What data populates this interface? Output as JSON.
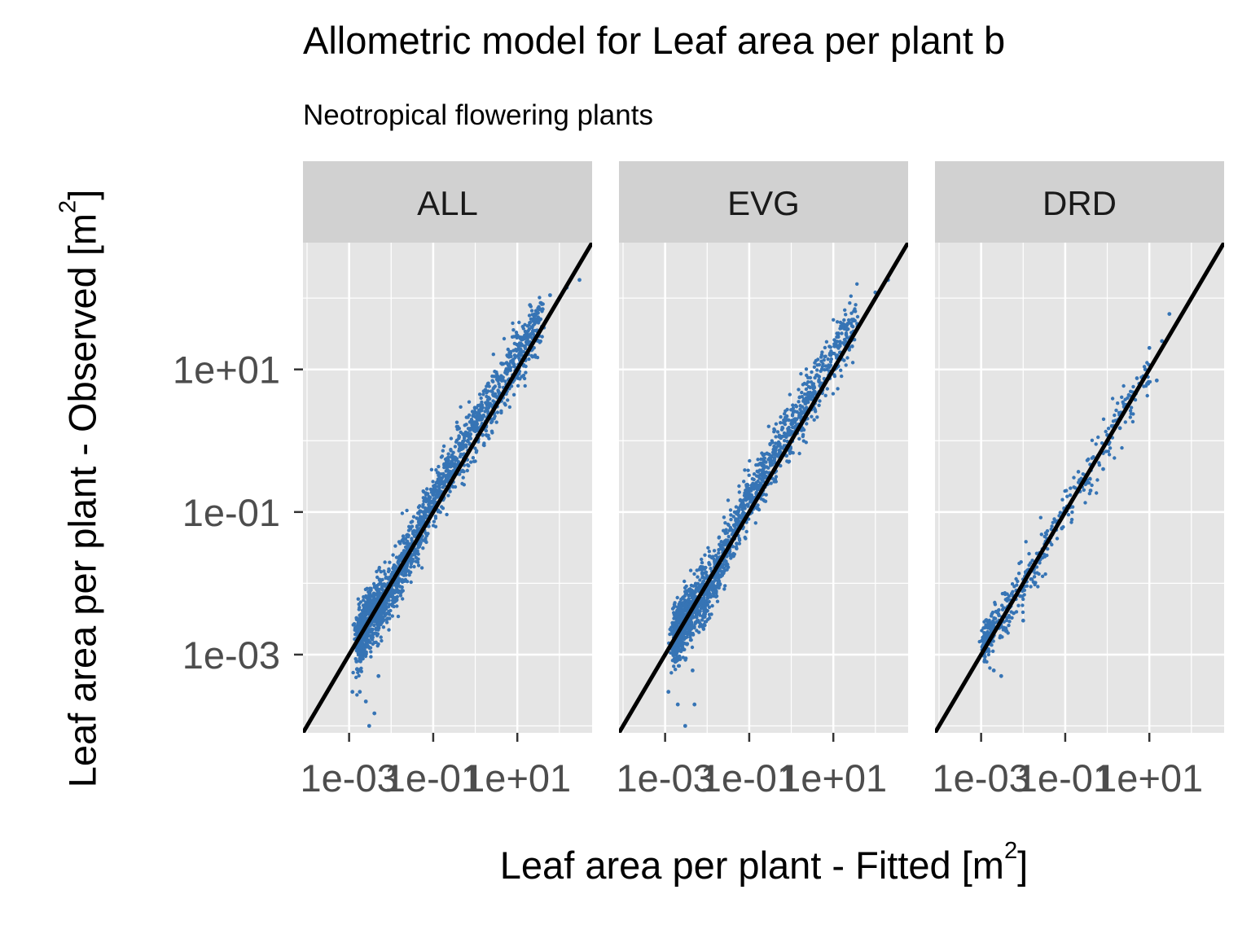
{
  "chart_data": {
    "type": "scatter",
    "title": "Allometric model for Leaf area per plant b",
    "subtitle": "Neotropical flowering plants",
    "xlabel": "Leaf area per plant - Fitted [m",
    "ylabel": "Leaf area per plant - Observed [m",
    "unit_exponent": "2",
    "unit_close": "]",
    "scale": "log10",
    "xlim": [
      8e-05,
      600
    ],
    "ylim": [
      8e-05,
      600
    ],
    "x_ticks": [
      0.001,
      0.1,
      10
    ],
    "y_ticks": [
      0.001,
      0.1,
      10
    ],
    "x_tick_labels": [
      "1e-03",
      "1e-01",
      "1e+01"
    ],
    "y_tick_labels": [
      "1e-03",
      "1e-01",
      "1e+01"
    ],
    "grid": true,
    "reference_line": "1:1",
    "point_color": "#3674B5",
    "line_color": "#000000",
    "panel_background": "#E5E5E5",
    "strip_background": "#D1D1D1",
    "panels": [
      {
        "label": "ALL",
        "approx_n_points": 2000,
        "center": [
          [
            0.003,
            0.003
          ],
          [
            0.01,
            0.008
          ],
          [
            0.03,
            0.03
          ],
          [
            0.1,
            0.15
          ],
          [
            0.3,
            0.5
          ],
          [
            1,
            1.5
          ],
          [
            3,
            4
          ],
          [
            10,
            15
          ],
          [
            30,
            45
          ]
        ],
        "points": [
          {
            "x": 0.0018,
            "y": 0.0003
          },
          {
            "x": 0.0025,
            "y": 0.00022
          },
          {
            "x": 0.003,
            "y": 0.0001
          },
          {
            "x": 0.0012,
            "y": 0.0003
          },
          {
            "x": 0.0015,
            "y": 0.0008
          },
          {
            "x": 0.004,
            "y": 0.00015
          },
          {
            "x": 0.005,
            "y": 0.0005
          },
          {
            "x": 0.2,
            "y": 0.2
          },
          {
            "x": 1.5,
            "y": 1.2
          },
          {
            "x": 3,
            "y": 3
          },
          {
            "x": 10,
            "y": 30
          },
          {
            "x": 20,
            "y": 80
          },
          {
            "x": 40,
            "y": 70
          },
          {
            "x": 60,
            "y": 110
          },
          {
            "x": 150,
            "y": 140
          },
          {
            "x": 300,
            "y": 180
          }
        ]
      },
      {
        "label": "EVG",
        "approx_n_points": 1700,
        "center": [
          [
            0.003,
            0.003
          ],
          [
            0.01,
            0.008
          ],
          [
            0.03,
            0.03
          ],
          [
            0.1,
            0.15
          ],
          [
            0.3,
            0.5
          ],
          [
            1,
            1.5
          ],
          [
            3,
            4
          ],
          [
            10,
            15
          ],
          [
            30,
            45
          ]
        ],
        "points": [
          {
            "x": 0.0012,
            "y": 0.0003
          },
          {
            "x": 0.002,
            "y": 0.0002
          },
          {
            "x": 0.003,
            "y": 0.0001
          },
          {
            "x": 0.005,
            "y": 0.0002
          },
          {
            "x": 0.0045,
            "y": 0.0006
          },
          {
            "x": 1,
            "y": 1
          },
          {
            "x": 5,
            "y": 5
          },
          {
            "x": 30,
            "y": 50
          },
          {
            "x": 100,
            "y": 120
          },
          {
            "x": 200,
            "y": 180
          }
        ]
      },
      {
        "label": "DRD",
        "approx_n_points": 450,
        "center": [
          [
            0.002,
            0.0025
          ],
          [
            0.005,
            0.005
          ],
          [
            0.01,
            0.01
          ],
          [
            0.03,
            0.025
          ],
          [
            0.06,
            0.06
          ],
          [
            0.1,
            0.1
          ],
          [
            0.3,
            0.3
          ],
          [
            1,
            1
          ],
          [
            3,
            3
          ],
          [
            10,
            10
          ]
        ],
        "points": [
          {
            "x": 0.0012,
            "y": 0.0008
          },
          {
            "x": 0.002,
            "y": 0.0006
          },
          {
            "x": 0.003,
            "y": 0.0005
          },
          {
            "x": 0.01,
            "y": 0.003
          },
          {
            "x": 0.4,
            "y": 0.2
          },
          {
            "x": 0.8,
            "y": 0.4
          },
          {
            "x": 1,
            "y": 1.2
          },
          {
            "x": 2,
            "y": 1.5
          },
          {
            "x": 2.5,
            "y": 3
          },
          {
            "x": 5,
            "y": 5
          },
          {
            "x": 8,
            "y": 10
          },
          {
            "x": 10,
            "y": 20
          },
          {
            "x": 15,
            "y": 7
          },
          {
            "x": 20,
            "y": 25
          },
          {
            "x": 30,
            "y": 60
          }
        ]
      }
    ]
  }
}
